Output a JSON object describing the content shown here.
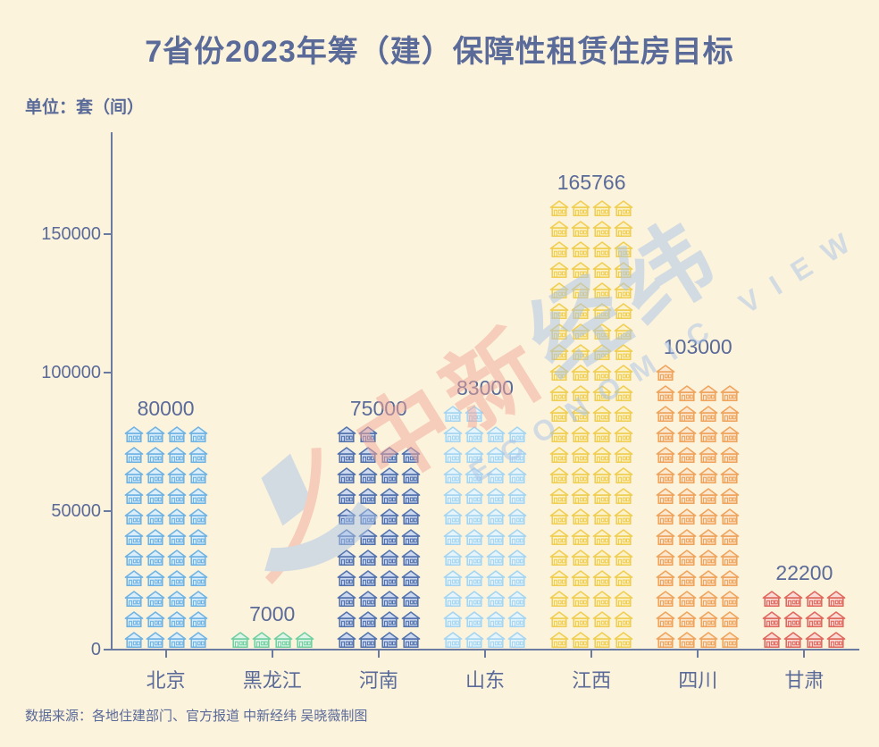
{
  "title": "7省份2023年筹（建）保障性租赁住房目标",
  "unit_label": "单位：套（间）",
  "source_note": "数据来源：各地住建部门、官方报道 中新经纬 吴晓薇制图",
  "colors": {
    "background": "#FCF3DC",
    "text": "#5A6A99",
    "axis": "#6B7AA1"
  },
  "watermark": {
    "cn_left": "中新",
    "cn_right": "经纬",
    "en": "ECONOMIC VIEW",
    "color_red": "#F2A79B",
    "color_blue": "#ABC5E8"
  },
  "chart_data": {
    "type": "bar",
    "variant": "pictogram-houses",
    "title": "7省份2023年筹（建）保障性租赁住房目标",
    "unit": "套（间）",
    "categories": [
      "北京",
      "黑龙江",
      "河南",
      "山东",
      "江西",
      "四川",
      "甘肃"
    ],
    "values": [
      80000,
      7000,
      75000,
      83000,
      165766,
      103000,
      22200
    ],
    "value_labels": [
      "80000",
      "7000",
      "75000",
      "83000",
      "165766",
      "103000",
      "22200"
    ],
    "bar_stroke_colors": [
      "#6FB3E3",
      "#72CFA0",
      "#5372AC",
      "#A5D5F0",
      "#F0CE52",
      "#EFA45C",
      "#E0685C"
    ],
    "bar_fill_colors": [
      "#DCEEFA",
      "#DFF5EA",
      "#CDD9EF",
      "#E6F4FC",
      "#FBF2CC",
      "#FBE8D0",
      "#F8DCD7"
    ],
    "icon_counts": [
      44,
      4,
      42,
      46,
      88,
      53,
      12
    ],
    "icons_per_row": 4,
    "xlabel": "",
    "ylabel": "",
    "yticks": [
      0,
      50000,
      100000,
      150000
    ],
    "ylim": [
      0,
      186000
    ],
    "grid": false,
    "legend": false
  }
}
